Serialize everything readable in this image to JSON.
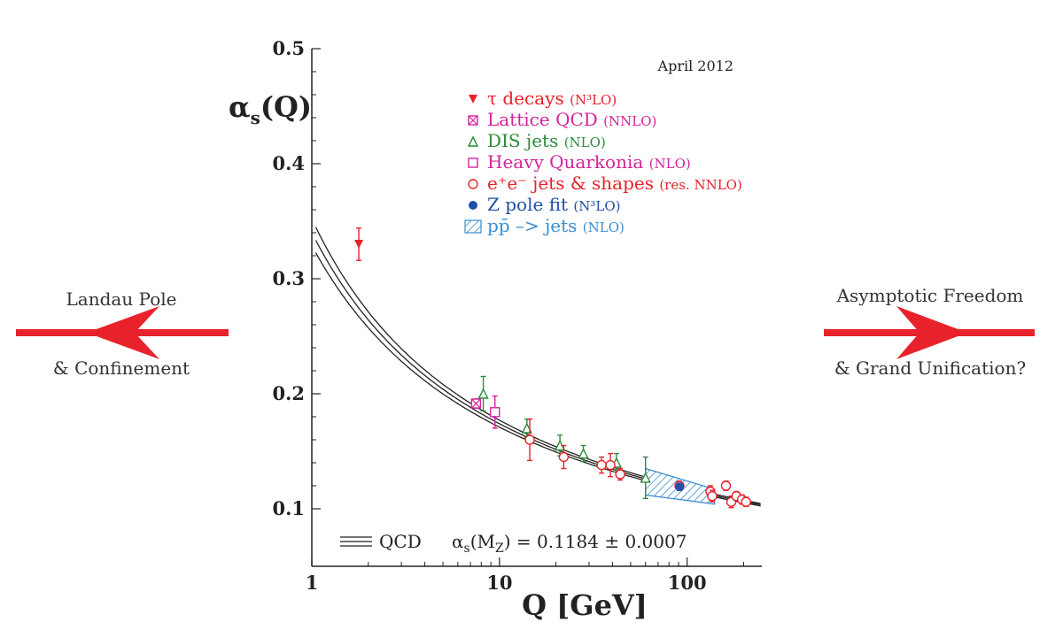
{
  "left_annotation": {
    "line1": "Landau Pole",
    "line2": "& Confinement"
  },
  "right_annotation": {
    "line1": "Asymptotic Freedom",
    "line2": "& Grand Unification?"
  },
  "arrow_color": "#e8222b",
  "chart_data": {
    "type": "scatter",
    "date_label": "April 2012",
    "xlabel": "Q [GeV]",
    "ylabel_main": "α",
    "ylabel_sub": "s",
    "ylabel_tail": "(Q)",
    "x_scale": "log",
    "xlim": [
      1,
      250
    ],
    "ylim": [
      0.05,
      0.5
    ],
    "x_ticks": [
      1,
      10,
      100
    ],
    "x_tick_labels": [
      "1",
      "10",
      "100"
    ],
    "y_ticks": [
      0.1,
      0.2,
      0.3,
      0.4,
      0.5
    ],
    "y_tick_labels": [
      "0.1",
      "0.2",
      "0.3",
      "0.4",
      "0.5"
    ],
    "qcd_label": "QCD",
    "fit_prefix": "α",
    "fit_sub": "s",
    "fit_mid": "(M",
    "fit_sub2": "Z",
    "fit_tail": ") = 0.1184 ± 0.0007",
    "legend": [
      {
        "marker": "tri-down-filled",
        "color": "#e8222b",
        "label": "τ decays",
        "order": "(N³LO)"
      },
      {
        "marker": "square-x",
        "color": "#d4239b",
        "label": "Lattice QCD",
        "order": "(NNLO)"
      },
      {
        "marker": "tri-up-open",
        "color": "#2e8b3c",
        "label": "DIS jets",
        "order": "(NLO)"
      },
      {
        "marker": "square-open",
        "color": "#d4239b",
        "label": "Heavy Quarkonia",
        "order": "(NLO)"
      },
      {
        "marker": "circle-open",
        "color": "#e8222b",
        "label": "e⁺e⁻ jets & shapes",
        "order": "(res. NNLO)"
      },
      {
        "marker": "circle-filled",
        "color": "#1f4fa8",
        "label": "Z pole fit",
        "order": "(N³LO)"
      },
      {
        "marker": "hatched-box",
        "color": "#3a8ed0",
        "label": "pp̄ –> jets",
        "order": "(NLO)"
      }
    ],
    "series": [
      {
        "name": "τ decays",
        "marker": "tri-down-filled",
        "color": "#e8222b",
        "points": [
          {
            "x": 1.78,
            "y": 0.33,
            "err": 0.014
          }
        ]
      },
      {
        "name": "Lattice QCD",
        "marker": "square-x",
        "color": "#d4239b",
        "points": [
          {
            "x": 7.5,
            "y": 0.1915,
            "err": 0.004
          }
        ]
      },
      {
        "name": "DIS jets",
        "marker": "tri-up-open",
        "color": "#2e8b3c",
        "points": [
          {
            "x": 8.2,
            "y": 0.2,
            "err": 0.015
          },
          {
            "x": 14,
            "y": 0.17,
            "err": 0.008
          },
          {
            "x": 21,
            "y": 0.155,
            "err": 0.009
          },
          {
            "x": 28,
            "y": 0.148,
            "err": 0.007
          },
          {
            "x": 42,
            "y": 0.14,
            "err": 0.008
          },
          {
            "x": 60,
            "y": 0.127,
            "err": 0.018
          }
        ]
      },
      {
        "name": "Heavy Quarkonia",
        "marker": "square-open",
        "color": "#d4239b",
        "points": [
          {
            "x": 9.46,
            "y": 0.184,
            "err": 0.014
          }
        ]
      },
      {
        "name": "e⁺e⁻ jets & shapes",
        "marker": "circle-open",
        "color": "#e8222b",
        "points": [
          {
            "x": 14.5,
            "y": 0.16,
            "err": 0.018
          },
          {
            "x": 22,
            "y": 0.145,
            "err": 0.01
          },
          {
            "x": 35,
            "y": 0.138,
            "err": 0.007
          },
          {
            "x": 39,
            "y": 0.138,
            "err": 0.01
          },
          {
            "x": 44,
            "y": 0.13,
            "err": 0.005
          },
          {
            "x": 91,
            "y": 0.12,
            "err": 0.004
          },
          {
            "x": 133,
            "y": 0.115,
            "err": 0.005
          },
          {
            "x": 136,
            "y": 0.111,
            "err": 0.005
          },
          {
            "x": 161,
            "y": 0.12,
            "err": 0.004
          },
          {
            "x": 172,
            "y": 0.106,
            "err": 0.005
          },
          {
            "x": 183,
            "y": 0.111,
            "err": 0.004
          },
          {
            "x": 196,
            "y": 0.108,
            "err": 0.004
          },
          {
            "x": 206,
            "y": 0.106,
            "err": 0.004
          }
        ]
      },
      {
        "name": "Z pole fit",
        "marker": "circle-filled",
        "color": "#1f4fa8",
        "points": [
          {
            "x": 91.19,
            "y": 0.1191,
            "err": 0.003
          }
        ]
      }
    ],
    "band": {
      "name": "pp̄ –> jets",
      "x_range": [
        60,
        140
      ],
      "y_lower_start": 0.112,
      "y_upper_start": 0.135,
      "y_lower_end": 0.104,
      "y_upper_end": 0.117,
      "color": "#3a8ed0"
    },
    "curve": {
      "name": "QCD",
      "alpha_mz": 0.1184,
      "uncertainty": 0.0007,
      "color": "#222"
    }
  }
}
